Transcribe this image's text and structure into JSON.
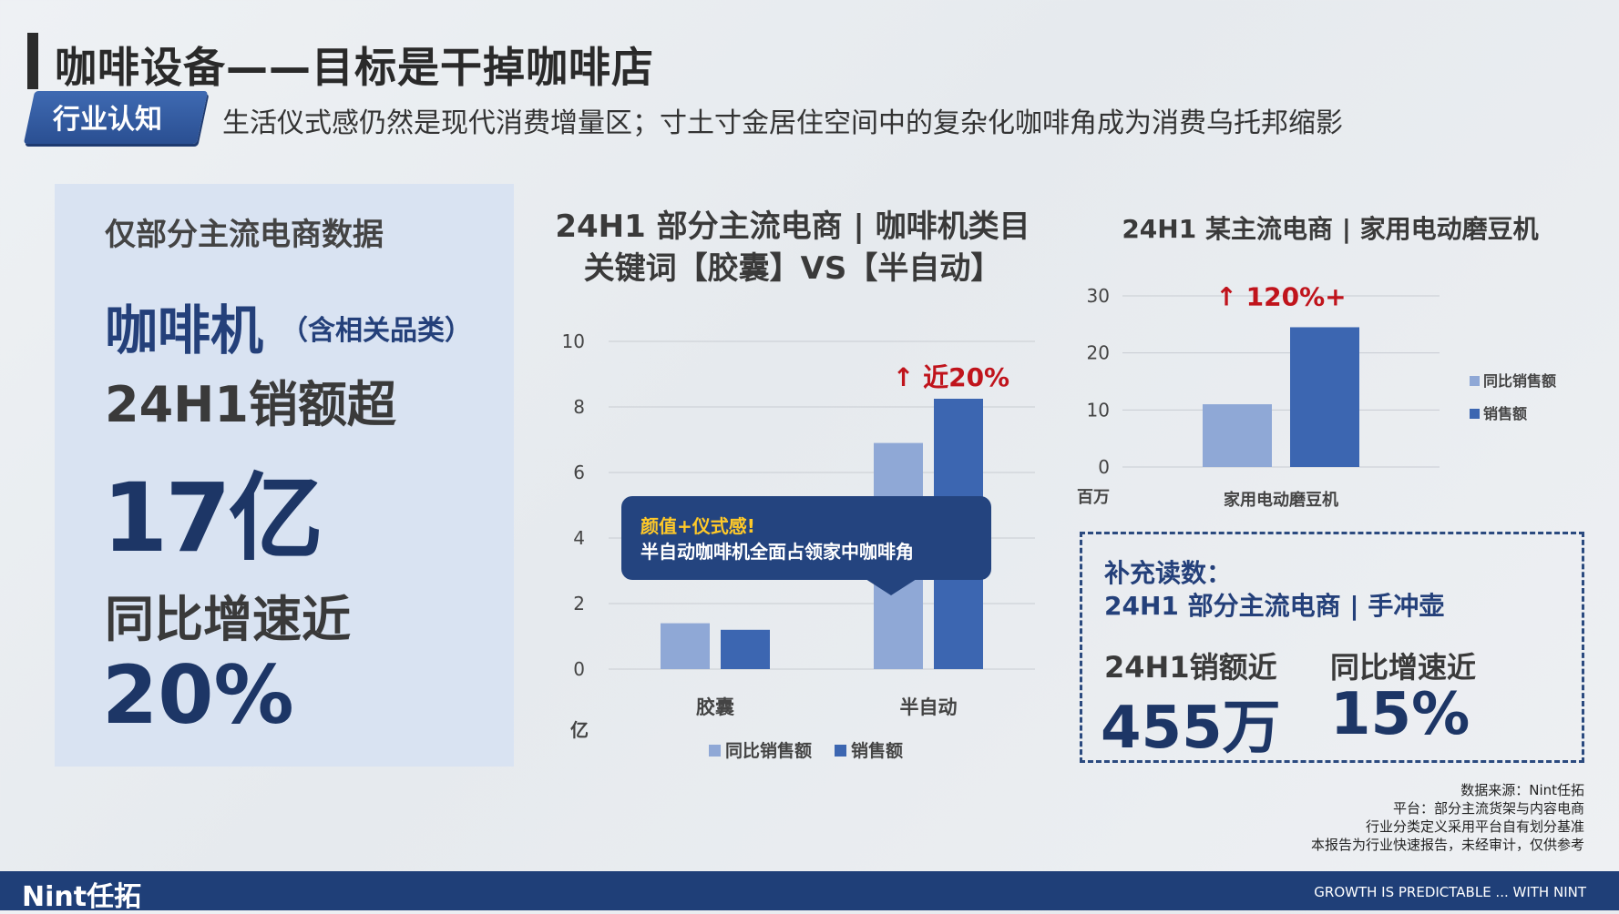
{
  "header": {
    "title": "咖啡设备——目标是干掉咖啡店",
    "tag": "行业认知",
    "subtitle": "生活仪式感仍然是现代消费增量区；寸土寸金居住空间中的复杂化咖啡角成为消费乌托邦缩影"
  },
  "left_panel": {
    "note": "仅部分主流电商数据",
    "product": "咖啡机",
    "product_sub": "（含相关品类）",
    "sales_label": "24H1销额超",
    "sales_value": "17亿",
    "growth_label": "同比增速近",
    "growth_value": "20%"
  },
  "callout": {
    "line1": "颜值+仪式感!",
    "line2": "半自动咖啡机全面占领家中咖啡角"
  },
  "supplement": {
    "title": "补充读数：",
    "subtitle": "24H1 部分主流电商 | 手冲壶",
    "sales_label": "24H1销额近",
    "sales_value": "455万",
    "growth_label": "同比增速近",
    "growth_value": "15%"
  },
  "source_notes": [
    "数据来源：Nint任拓",
    "平台：部分主流货架与内容电商",
    "行业分类定义采用平台自有划分基准",
    "本报告为行业快速报告，未经审计，仅供参考"
  ],
  "footer": {
    "logo": "Nint任拓",
    "slogan": "GROWTH IS PREDICTABLE ... WITH NINT"
  },
  "colors": {
    "light_series": "#8fa8d6",
    "dark_series": "#3c66b1",
    "accent_red": "#c0141c",
    "navy": "#1f3f78"
  },
  "chart_data": [
    {
      "type": "bar",
      "title": "24H1 部分主流电商 | 咖啡机类目 关键词【胶囊】VS【半自动】",
      "categories": [
        "胶囊",
        "半自动"
      ],
      "series": [
        {
          "name": "同比销售额",
          "values": [
            1.4,
            6.9
          ]
        },
        {
          "name": "销售额",
          "values": [
            1.2,
            8.25
          ]
        }
      ],
      "ylabel": "亿",
      "ylim": [
        0,
        10
      ],
      "yticks": [
        0,
        2,
        4,
        6,
        8,
        10
      ],
      "grid": true,
      "legend": "bottom",
      "annotation": "近20%"
    },
    {
      "type": "bar",
      "title": "24H1 某主流电商 | 家用电动磨豆机",
      "categories": [
        "家用电动磨豆机"
      ],
      "series": [
        {
          "name": "同比销售额",
          "values": [
            11
          ]
        },
        {
          "name": "销售额",
          "values": [
            24.5
          ]
        }
      ],
      "ylabel": "百万",
      "ylim": [
        0,
        30
      ],
      "yticks": [
        0,
        10,
        20,
        30
      ],
      "grid": true,
      "legend": "right",
      "annotation": "120%+"
    }
  ]
}
